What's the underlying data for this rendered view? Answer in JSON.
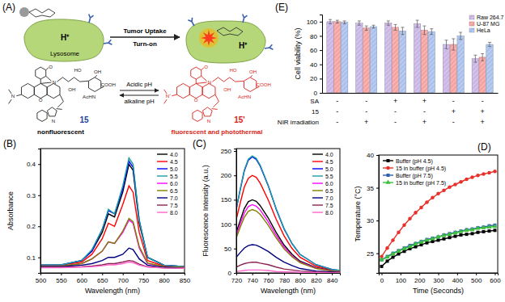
{
  "diagram": {
    "title": "(A)",
    "lysosome": "Lysosome",
    "proton_left": "H⁺",
    "proton_right": "H⁺",
    "arrow_top": "Tumor Uptake",
    "arrow_bottom": "Turn-on",
    "reaction_top": "Acidic pH",
    "reaction_bottom": "alkaline pH",
    "compound_left": {
      "label": "15",
      "caption": "nonfluorescent",
      "atoms": [
        "O",
        "N",
        "O",
        "N",
        "N",
        "HO",
        "OH",
        "OH",
        "AcHN",
        "COOH"
      ]
    },
    "compound_right": {
      "label": "15'",
      "caption": "fluorescent and photothermal",
      "atoms": [
        "O",
        "N",
        "O",
        "N⁺",
        "N",
        "HO",
        "OH",
        "OH",
        "AcHN",
        "COOH"
      ]
    }
  },
  "chart_data": [
    {
      "type": "line",
      "title": "(B)",
      "x_label": "Wavelength (nm)",
      "y_label": "Absorbance",
      "xlim": [
        500,
        850
      ],
      "ylim": [
        0.05,
        0.45
      ],
      "xticks": [
        500,
        550,
        600,
        650,
        700,
        750,
        800,
        850
      ],
      "yticks": [
        0.1,
        0.2,
        0.3,
        0.4
      ],
      "legend": "upper right",
      "x": [
        500,
        550,
        600,
        625,
        650,
        665,
        680,
        700,
        715,
        725,
        740,
        760,
        800,
        850
      ],
      "series": [
        {
          "name": "4.0",
          "color": "#000000",
          "values": [
            0.075,
            0.075,
            0.09,
            0.12,
            0.18,
            0.24,
            0.23,
            0.31,
            0.4,
            0.38,
            0.21,
            0.1,
            0.075,
            0.07
          ]
        },
        {
          "name": "4.5",
          "color": "#ff0000",
          "values": [
            0.075,
            0.075,
            0.085,
            0.11,
            0.16,
            0.21,
            0.2,
            0.27,
            0.33,
            0.31,
            0.18,
            0.09,
            0.072,
            0.07
          ]
        },
        {
          "name": "5.0",
          "color": "#0000ff",
          "values": [
            0.075,
            0.076,
            0.09,
            0.12,
            0.19,
            0.25,
            0.24,
            0.32,
            0.41,
            0.39,
            0.22,
            0.1,
            0.075,
            0.07
          ]
        },
        {
          "name": "5.5",
          "color": "#1e9e9e",
          "values": [
            0.076,
            0.076,
            0.09,
            0.125,
            0.19,
            0.255,
            0.24,
            0.33,
            0.42,
            0.4,
            0.22,
            0.1,
            0.075,
            0.07
          ]
        },
        {
          "name": "6.0",
          "color": "#ff00ff",
          "values": [
            0.072,
            0.072,
            0.08,
            0.095,
            0.12,
            0.15,
            0.145,
            0.18,
            0.22,
            0.21,
            0.13,
            0.08,
            0.07,
            0.068
          ]
        },
        {
          "name": "6.5",
          "color": "#808000",
          "values": [
            0.072,
            0.072,
            0.08,
            0.095,
            0.12,
            0.15,
            0.145,
            0.185,
            0.225,
            0.215,
            0.135,
            0.082,
            0.07,
            0.068
          ]
        },
        {
          "name": "7.0",
          "color": "#000080",
          "values": [
            0.07,
            0.07,
            0.075,
            0.08,
            0.09,
            0.1,
            0.1,
            0.11,
            0.13,
            0.125,
            0.095,
            0.075,
            0.068,
            0.066
          ]
        },
        {
          "name": "7.5",
          "color": "#8b2252",
          "values": [
            0.068,
            0.068,
            0.07,
            0.072,
            0.076,
            0.08,
            0.08,
            0.085,
            0.09,
            0.088,
            0.078,
            0.07,
            0.066,
            0.065
          ]
        },
        {
          "name": "8.0",
          "color": "#ff66cc",
          "values": [
            0.067,
            0.067,
            0.069,
            0.07,
            0.073,
            0.076,
            0.076,
            0.08,
            0.085,
            0.083,
            0.075,
            0.069,
            0.066,
            0.065
          ]
        }
      ]
    },
    {
      "type": "line",
      "title": "(C)",
      "x_label": "Wavelength (nm)",
      "y_label": "Fluorescence Intensity (a.u.)",
      "xlim": [
        720,
        850
      ],
      "ylim": [
        0,
        255
      ],
      "xticks": [
        720,
        740,
        760,
        780,
        800,
        820,
        840
      ],
      "yticks": [
        0,
        50,
        100,
        150,
        200,
        250
      ],
      "legend": "upper right",
      "x": [
        720,
        725,
        730,
        735,
        740,
        745,
        750,
        760,
        770,
        780,
        790,
        800,
        820,
        840,
        850
      ],
      "series": [
        {
          "name": "4.0",
          "color": "#000000",
          "values": [
            83,
            108,
            132,
            146,
            150,
            147,
            138,
            113,
            83,
            57,
            38,
            24,
            11,
            5,
            3
          ]
        },
        {
          "name": "4.5",
          "color": "#ff0000",
          "values": [
            110,
            144,
            176,
            194,
            200,
            196,
            184,
            150,
            110,
            76,
            50,
            32,
            14,
            6,
            4
          ]
        },
        {
          "name": "5.0",
          "color": "#0000ff",
          "values": [
            131,
            171,
            209,
            231,
            238,
            233,
            219,
            179,
            131,
            90,
            60,
            38,
            17,
            7,
            5
          ]
        },
        {
          "name": "5.5",
          "color": "#1e9e9e",
          "values": [
            132,
            173,
            211,
            233,
            240,
            235,
            221,
            180,
            132,
            91,
            60,
            38,
            17,
            7,
            5
          ]
        },
        {
          "name": "6.0",
          "color": "#ff00ff",
          "values": [
            77,
            101,
            123,
            136,
            140,
            137,
            129,
            105,
            77,
            53,
            35,
            22,
            10,
            4,
            3
          ]
        },
        {
          "name": "6.5",
          "color": "#808000",
          "values": [
            72,
            94,
            114,
            126,
            130,
            127,
            120,
            98,
            72,
            49,
            33,
            21,
            9,
            4,
            3
          ]
        },
        {
          "name": "7.0",
          "color": "#000080",
          "values": [
            32,
            42,
            51,
            56,
            58,
            57,
            53,
            44,
            32,
            22,
            15,
            9,
            4,
            2,
            1
          ]
        },
        {
          "name": "7.5",
          "color": "#8b2252",
          "values": [
            12,
            16,
            19,
            21,
            22,
            22,
            20,
            17,
            12,
            8,
            6,
            4,
            2,
            1,
            1
          ]
        },
        {
          "name": "8.0",
          "color": "#ff66cc",
          "values": [
            3,
            4,
            5,
            6,
            6,
            6,
            6,
            5,
            3,
            2,
            2,
            1,
            1,
            0,
            0
          ]
        }
      ]
    },
    {
      "type": "line",
      "title": "(D)",
      "x_label": "Time (Seconds)",
      "y_label": "Temperature (°C)",
      "xlim": [
        -15,
        615
      ],
      "ylim": [
        22,
        40
      ],
      "xticks": [
        0,
        100,
        200,
        300,
        400,
        500,
        600
      ],
      "yticks": [
        25,
        30,
        35,
        40
      ],
      "legend": "upper left",
      "x": [
        0,
        30,
        60,
        90,
        120,
        150,
        180,
        210,
        240,
        270,
        300,
        330,
        360,
        390,
        420,
        450,
        480,
        510,
        540,
        570,
        600
      ],
      "series": [
        {
          "name": "Buffer (pH 4.5)",
          "color": "#000000",
          "marker": "square",
          "values": [
            23,
            23.8,
            24.4,
            24.9,
            25.3,
            25.7,
            26.0,
            26.3,
            26.6,
            26.8,
            27.0,
            27.2,
            27.4,
            27.6,
            27.8,
            27.9,
            28.0,
            28.2,
            28.3,
            28.4,
            28.5
          ]
        },
        {
          "name": "15 in buffer (pH 4.5)",
          "color": "#e8312a",
          "marker": "circle",
          "values": [
            24.5,
            25.8,
            27.0,
            28.2,
            29.3,
            30.3,
            31.2,
            32.0,
            32.8,
            33.5,
            34.1,
            34.6,
            35.1,
            35.5,
            35.9,
            36.3,
            36.6,
            36.9,
            37.1,
            37.3,
            37.5
          ]
        },
        {
          "name": "Buffer (pH 7.5)",
          "color": "#2f5fb3",
          "marker": "square",
          "values": [
            24,
            24.5,
            25.0,
            25.4,
            25.8,
            26.2,
            26.5,
            26.8,
            27.1,
            27.3,
            27.5,
            27.8,
            28.0,
            28.2,
            28.4,
            28.6,
            28.7,
            28.9,
            29.0,
            29.2,
            29.3
          ]
        },
        {
          "name": "15 in buffer (pH 7.5)",
          "color": "#3cc03c",
          "marker": "triangle",
          "values": [
            24,
            24.4,
            24.9,
            25.3,
            25.7,
            26.0,
            26.4,
            26.7,
            27.0,
            27.2,
            27.5,
            27.7,
            27.9,
            28.1,
            28.3,
            28.5,
            28.6,
            28.8,
            28.9,
            29.0,
            29.1
          ]
        }
      ]
    },
    {
      "type": "bar",
      "title": "(E)",
      "y_label": "Cell viability (%)",
      "categories": [
        null,
        null,
        null,
        null,
        null,
        null
      ],
      "ylim": [
        0,
        110
      ],
      "yticks": [
        0,
        20,
        40,
        60,
        80,
        100
      ],
      "legend": "upper right",
      "series": [
        {
          "name": "Raw 264.7",
          "color": "#c9b6e4",
          "values": [
            100,
            98,
            98,
            97,
            68,
            48
          ],
          "errors": [
            3,
            3,
            3,
            5,
            6,
            5
          ]
        },
        {
          "name": "U-87 MG",
          "color": "#f4a3a3",
          "values": [
            100,
            91,
            92,
            88,
            68,
            50
          ],
          "errors": [
            2,
            3,
            4,
            6,
            8,
            5
          ]
        },
        {
          "name": "HeLa",
          "color": "#a9c1ec",
          "values": [
            99,
            93,
            87,
            86,
            80,
            68
          ],
          "errors": [
            2,
            2,
            5,
            4,
            5,
            3
          ]
        }
      ],
      "conditions": [
        {
          "label": "SA",
          "values": [
            "-",
            "-",
            "+",
            "+",
            "-",
            "-"
          ]
        },
        {
          "label": "15",
          "values": [
            "-",
            "-",
            "-",
            "-",
            "+",
            "+"
          ]
        },
        {
          "label": "NIR irradiation",
          "values": [
            "-",
            "+",
            "-",
            "+",
            "-",
            "+"
          ]
        }
      ]
    }
  ]
}
